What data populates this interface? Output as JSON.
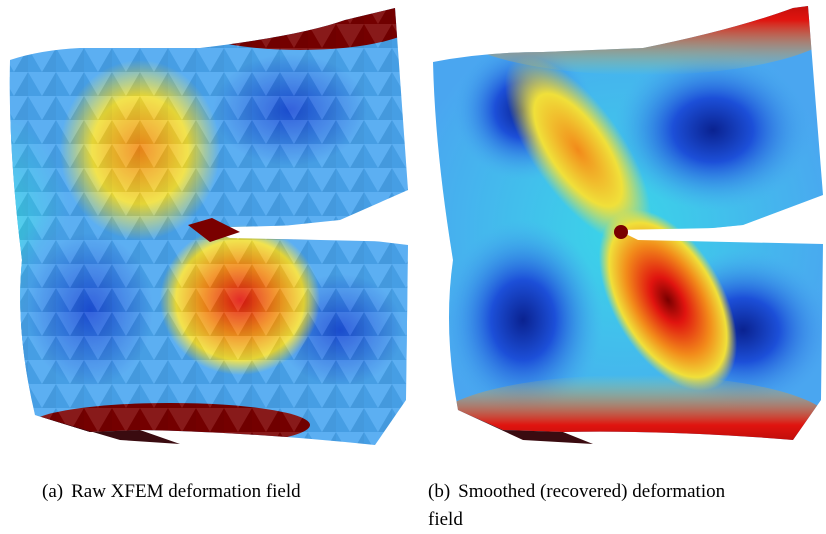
{
  "figure": {
    "subfigure_a": {
      "tag": "(a)",
      "caption": "Raw XFEM deformation field",
      "colormap": "jet"
    },
    "subfigure_b": {
      "tag": "(b)",
      "caption_line1": "Smoothed (recovered) deformation",
      "caption_line2": "field",
      "colormap": "jet"
    },
    "colors": {
      "dark_red": "#7a0000",
      "red": "#e0140f",
      "orange": "#f28a1a",
      "yellow": "#f0e03a",
      "cyan": "#3ad6e8",
      "light_blue": "#4aa6f0",
      "blue": "#1c4fd8",
      "dark_blue": "#0a2290",
      "shadow": "#3a0b10"
    }
  }
}
